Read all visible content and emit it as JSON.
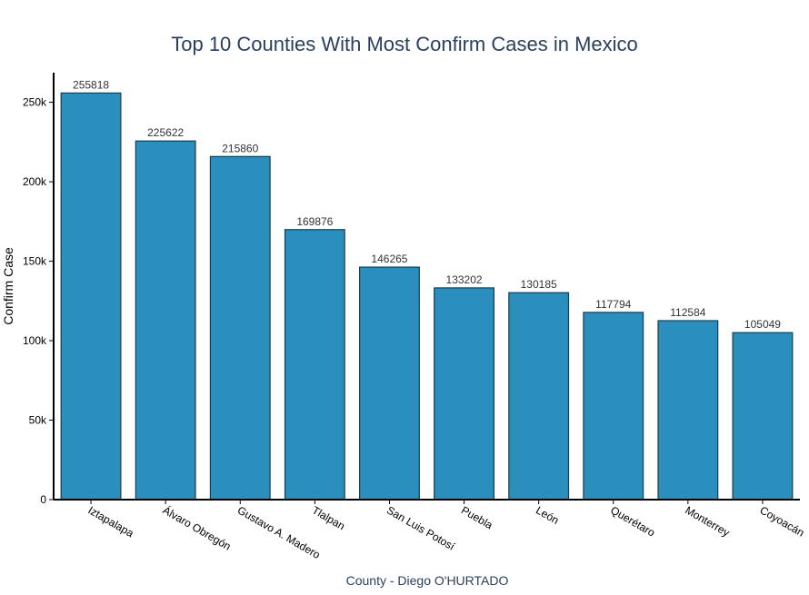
{
  "chart_data": {
    "type": "bar",
    "title": "Top 10 Counties With Most Confirm Cases in Mexico",
    "xlabel": "County - Diego O'HURTADO",
    "ylabel": "Confirm Case",
    "categories": [
      "Iztapalapa",
      "Álvaro Obregón",
      "Gustavo A. Madero",
      "Tlalpan",
      "San Luis Potosí",
      "Puebla",
      "León",
      "Querétaro",
      "Monterrey",
      "Coyoacán"
    ],
    "values": [
      255818,
      225622,
      215860,
      169876,
      146265,
      133202,
      130185,
      117794,
      112584,
      105049
    ],
    "data_labels": [
      "255818",
      "225622",
      "215860",
      "169876",
      "146265",
      "133202",
      "130185",
      "117794",
      "112584",
      "105049"
    ],
    "y_ticks": [
      0,
      50000,
      100000,
      150000,
      200000,
      250000
    ],
    "y_tick_labels": [
      "0",
      "50k",
      "100k",
      "150k",
      "200k",
      "250k"
    ],
    "ylim": [
      0,
      268610
    ],
    "grid": false,
    "legend": "none",
    "bar_color": "#2a8fbd",
    "bar_edge_color": "#1f3a47",
    "axis_color": "#000000",
    "title_color": "#2a3f5f",
    "text_color": "#2a3f5f"
  }
}
